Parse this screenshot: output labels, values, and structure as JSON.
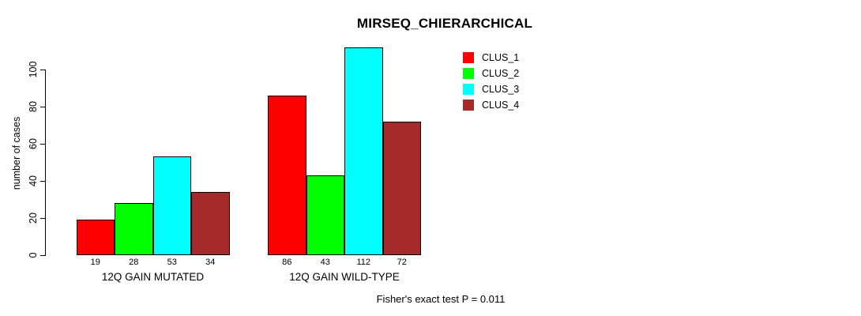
{
  "chart_data": {
    "type": "bar",
    "title": "MIRSEQ_CHIERARCHICAL",
    "ylabel": "number of cases",
    "xlabel": "",
    "categories": [
      "12Q GAIN MUTATED",
      "12Q GAIN WILD-TYPE"
    ],
    "series": [
      {
        "name": "CLUS_1",
        "color": "#FF0000",
        "values": [
          19,
          86
        ]
      },
      {
        "name": "CLUS_2",
        "color": "#00FF00",
        "values": [
          28,
          43
        ]
      },
      {
        "name": "CLUS_3",
        "color": "#00FFFF",
        "values": [
          53,
          112
        ]
      },
      {
        "name": "CLUS_4",
        "color": "#A52A2A",
        "values": [
          34,
          72
        ]
      }
    ],
    "yticks": [
      0,
      20,
      40,
      60,
      80,
      100
    ],
    "ylim": [
      0,
      115
    ],
    "grid": false,
    "show_bar_value_labels": true,
    "legend_position": "top-right",
    "legend_entries": [
      "CLUS_1",
      "CLUS_2",
      "CLUS_3",
      "CLUS_4"
    ],
    "annotation": "Fisher's exact test P = 0.011"
  }
}
